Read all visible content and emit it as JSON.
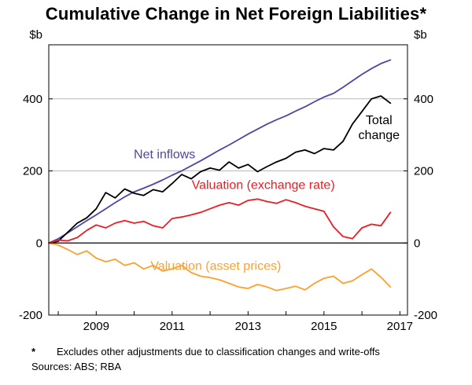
{
  "chart_data": {
    "type": "line",
    "title": "Cumulative Change in Net Foreign Liabilities*",
    "unit_left": "$b",
    "unit_right": "$b",
    "xlim": [
      2007.75,
      2017.2
    ],
    "ylim": [
      -200,
      550
    ],
    "y_ticks": [
      -200,
      0,
      200,
      400
    ],
    "y_gridlines": [
      200,
      400
    ],
    "x_minor_ticks": [
      2008,
      2009,
      2010,
      2011,
      2012,
      2013,
      2014,
      2015,
      2016,
      2017
    ],
    "x_tick_labels": [
      "2009",
      "2011",
      "2013",
      "2015",
      "2017"
    ],
    "x_tick_label_positions": [
      2009,
      2011,
      2013,
      2015,
      2017
    ],
    "grid_color": "#b9b9b9",
    "x": [
      2007.75,
      2008,
      2008.25,
      2008.5,
      2008.75,
      2009,
      2009.25,
      2009.5,
      2009.75,
      2010,
      2010.25,
      2010.5,
      2010.75,
      2011,
      2011.25,
      2011.5,
      2011.75,
      2012,
      2012.25,
      2012.5,
      2012.75,
      2013,
      2013.25,
      2013.5,
      2013.75,
      2014,
      2014.25,
      2014.5,
      2014.75,
      2015,
      2015.25,
      2015.5,
      2015.75,
      2016,
      2016.25,
      2016.5,
      2016.75
    ],
    "series": [
      {
        "name": "Net inflows",
        "color": "#4d46a5",
        "values": [
          0,
          12,
          28,
          45,
          62,
          78,
          95,
          112,
          128,
          142,
          152,
          163,
          175,
          188,
          200,
          214,
          228,
          243,
          258,
          272,
          287,
          302,
          316,
          330,
          342,
          353,
          366,
          378,
          392,
          405,
          415,
          432,
          450,
          468,
          484,
          498,
          508
        ]
      },
      {
        "name": "Total change",
        "color": "#000000",
        "values": [
          0,
          5,
          30,
          55,
          70,
          95,
          140,
          125,
          150,
          138,
          132,
          148,
          142,
          165,
          190,
          178,
          198,
          208,
          202,
          225,
          208,
          218,
          198,
          212,
          225,
          235,
          252,
          258,
          248,
          262,
          258,
          282,
          330,
          365,
          400,
          408,
          388
        ]
      },
      {
        "name": "Valuation (exchange rate)",
        "color": "#ed1c24",
        "values": [
          0,
          8,
          6,
          15,
          35,
          50,
          42,
          55,
          62,
          55,
          60,
          48,
          42,
          68,
          72,
          78,
          85,
          95,
          105,
          112,
          105,
          118,
          122,
          115,
          110,
          120,
          112,
          102,
          95,
          88,
          45,
          18,
          12,
          42,
          52,
          48,
          85
        ]
      },
      {
        "name": "Valuation (asset prices)",
        "color": "#ffa02e",
        "values": [
          0,
          -6,
          -18,
          -32,
          -22,
          -42,
          -52,
          -45,
          -62,
          -55,
          -72,
          -62,
          -78,
          -72,
          -62,
          -82,
          -92,
          -96,
          -102,
          -112,
          -122,
          -126,
          -115,
          -122,
          -132,
          -126,
          -120,
          -130,
          -112,
          -98,
          -92,
          -112,
          -105,
          -88,
          -72,
          -95,
          -122
        ]
      }
    ],
    "annotations": [
      {
        "lines": [
          "Net inflows"
        ],
        "x": 2010.8,
        "y": 235,
        "color": "#4d46a5"
      },
      {
        "lines": [
          "Total",
          "change"
        ],
        "x": 2016.45,
        "y": 330,
        "color": "#000000"
      },
      {
        "lines": [
          "Valuation (exchange rate)"
        ],
        "x": 2013.4,
        "y": 150,
        "color": "#ed1c24"
      },
      {
        "lines": [
          "Valuation (asset prices)"
        ],
        "x": 2012.15,
        "y": -75,
        "color": "#ffa02e"
      }
    ]
  },
  "footnote": {
    "marker": "*",
    "text": "Excludes other adjustments due to classification changes and write-offs"
  },
  "sources": "Sources: ABS; RBA"
}
